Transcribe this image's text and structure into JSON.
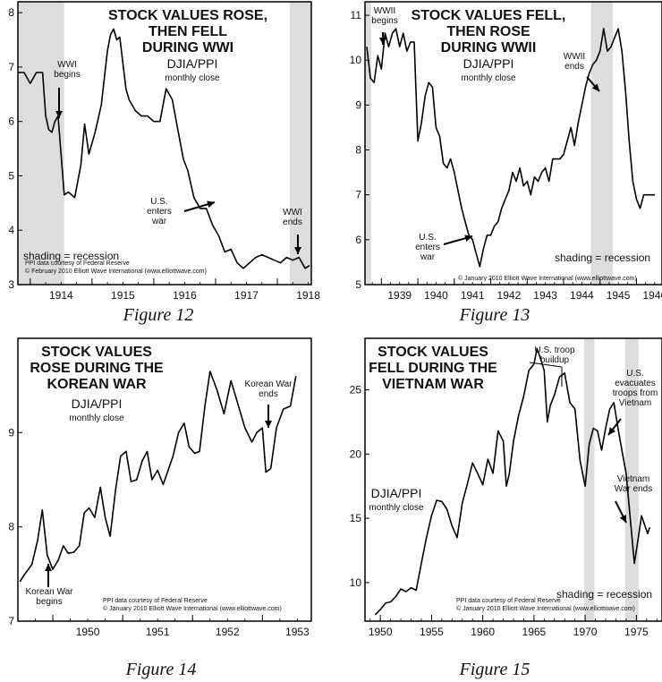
{
  "colors": {
    "shade": "#dddddd",
    "line": "#000000",
    "frame": "#000000"
  },
  "chart_data": [
    {
      "type": "line",
      "caption": "Figure 12",
      "title": [
        "STOCK VALUES ROSE,",
        "THEN FELL",
        "DURING WWI"
      ],
      "subtitle": "DJIA/PPI",
      "subtitle2": "monthly close",
      "shading_label": "shading = recession",
      "credits": [
        "PPI data courtesy of Federal Reserve",
        "© February 2010 Elliott Wave International (www.elliottwave.com)"
      ],
      "xlim": [
        1913.8,
        1918.55
      ],
      "ylim": [
        3,
        8.2
      ],
      "x_ticks": [
        1914,
        1915,
        1916,
        1917,
        1918
      ],
      "x_tick_labels": [
        "1914",
        "1915",
        "1916",
        "1917",
        "1918"
      ],
      "y_ticks": [
        3,
        4,
        5,
        6,
        7,
        8
      ],
      "y_tick_labels": [
        "3",
        "4",
        "5",
        "6",
        "7",
        "8"
      ],
      "recessions": [
        [
          1913.8,
          1914.55
        ],
        [
          1918.2,
          1918.55
        ]
      ],
      "series": [
        {
          "x": [
            1913.8,
            1913.9,
            1914.0,
            1914.1,
            1914.2,
            1914.25,
            1914.3,
            1914.35,
            1914.4,
            1914.45,
            1914.55,
            1914.62,
            1914.72,
            1914.82,
            1914.88,
            1914.95,
            1915.05,
            1915.15,
            1915.25,
            1915.3,
            1915.35,
            1915.4,
            1915.45,
            1915.55,
            1915.6,
            1915.7,
            1915.8,
            1915.9,
            1916.0,
            1916.1,
            1916.2,
            1916.3,
            1916.38,
            1916.48,
            1916.55,
            1916.65,
            1916.75,
            1916.85,
            1916.95,
            1917.05,
            1917.15,
            1917.25,
            1917.35,
            1917.45,
            1917.55,
            1917.65,
            1917.75,
            1917.85,
            1917.95,
            1918.05,
            1918.15,
            1918.25,
            1918.35,
            1918.45,
            1918.52
          ],
          "y": [
            6.9,
            6.9,
            6.7,
            6.9,
            6.9,
            6.1,
            5.85,
            5.8,
            6.0,
            6.1,
            4.65,
            4.7,
            4.6,
            5.2,
            5.95,
            5.4,
            5.8,
            6.3,
            7.3,
            7.6,
            7.7,
            7.5,
            7.55,
            6.6,
            6.4,
            6.2,
            6.1,
            6.1,
            6.0,
            6.0,
            6.6,
            6.4,
            5.9,
            5.3,
            5.1,
            4.6,
            4.4,
            4.4,
            4.1,
            3.9,
            3.6,
            3.65,
            3.4,
            3.3,
            3.4,
            3.5,
            3.55,
            3.5,
            3.45,
            3.4,
            3.5,
            3.45,
            3.5,
            3.3,
            3.35
          ]
        }
      ],
      "annotations": [
        {
          "lines": [
            "WWI",
            "begins"
          ],
          "x": 1914.35,
          "y": 5.85
        },
        {
          "lines": [
            "U.S.",
            "enters",
            "war"
          ],
          "x": 1916.85,
          "y": 4.4
        },
        {
          "lines": [
            "WWI",
            "ends"
          ],
          "x": 1918.45,
          "y": 3.55
        }
      ]
    },
    {
      "type": "line",
      "caption": "Figure 13",
      "title": [
        "STOCK VALUES FELL,",
        "THEN ROSE",
        "DURING WWII"
      ],
      "subtitle": "DJIA/PPI",
      "subtitle2": "monthly close",
      "shading_label": "shading = recession",
      "credits": [
        "© January 2010 Elliott Wave International (www.elliottwave.com)"
      ],
      "xlim": [
        1938.55,
        1946.7
      ],
      "ylim": [
        5,
        11.3
      ],
      "x_ticks": [
        1939,
        1940,
        1941,
        1942,
        1943,
        1944,
        1945,
        1946
      ],
      "x_tick_labels": [
        "1939",
        "1940",
        "1941",
        "1942",
        "1943",
        "1944",
        "1945",
        "1946"
      ],
      "y_ticks": [
        5,
        6,
        7,
        8,
        9,
        10,
        11
      ],
      "y_tick_labels": [
        "5",
        "6",
        "7",
        "8",
        "9",
        "10",
        "11"
      ],
      "recessions": [
        [
          1938.55,
          1938.72
        ],
        [
          1944.75,
          1945.35
        ]
      ],
      "series": [
        {
          "x": [
            1938.6,
            1938.7,
            1938.8,
            1938.9,
            1939.0,
            1939.1,
            1939.2,
            1939.3,
            1939.4,
            1939.5,
            1939.6,
            1939.7,
            1939.8,
            1939.9,
            1940.0,
            1940.1,
            1940.2,
            1940.3,
            1940.4,
            1940.5,
            1940.6,
            1940.7,
            1940.8,
            1940.9,
            1941.0,
            1941.1,
            1941.2,
            1941.3,
            1941.4,
            1941.5,
            1941.6,
            1941.7,
            1941.8,
            1941.9,
            1942.0,
            1942.1,
            1942.2,
            1942.3,
            1942.4,
            1942.5,
            1942.6,
            1942.7,
            1942.8,
            1942.9,
            1943.0,
            1943.1,
            1943.2,
            1943.3,
            1943.4,
            1943.5,
            1943.6,
            1943.7,
            1943.8,
            1943.9,
            1944.0,
            1944.1,
            1944.2,
            1944.3,
            1944.4,
            1944.5,
            1944.6,
            1944.7,
            1944.8,
            1944.9,
            1945.0,
            1945.1,
            1945.2,
            1945.3,
            1945.4,
            1945.5,
            1945.6,
            1945.7,
            1945.8,
            1945.9,
            1946.0,
            1946.1,
            1946.2,
            1946.3,
            1946.4,
            1946.5
          ],
          "y": [
            10.3,
            9.6,
            9.5,
            10.1,
            9.8,
            10.6,
            10.3,
            10.6,
            10.7,
            10.3,
            10.6,
            10.2,
            10.4,
            10.4,
            8.2,
            8.6,
            9.2,
            9.5,
            9.4,
            8.5,
            8.3,
            7.7,
            7.6,
            7.8,
            7.5,
            7.1,
            6.7,
            6.4,
            6.1,
            6.0,
            5.7,
            5.4,
            5.8,
            6.1,
            6.1,
            6.3,
            6.4,
            6.7,
            6.9,
            7.1,
            7.5,
            7.3,
            7.6,
            7.2,
            7.3,
            7.0,
            7.4,
            7.3,
            7.5,
            7.6,
            7.3,
            7.8,
            7.8,
            7.8,
            7.9,
            8.2,
            8.5,
            8.1,
            8.6,
            9.0,
            9.4,
            9.7,
            9.9,
            10.0,
            10.2,
            10.7,
            10.2,
            10.3,
            10.5,
            10.7,
            10.2,
            9.3,
            8.2,
            7.3,
            6.9,
            6.7,
            7.0,
            7.0,
            7.0,
            7.0
          ]
        }
      ],
      "annotations": [
        {
          "lines": [
            "WWII",
            "begins"
          ],
          "x": 1939.3,
          "y": 10.6
        },
        {
          "lines": [
            "WWII",
            "ends"
          ],
          "x": 1945.35,
          "y": 10.2
        },
        {
          "lines": [
            "U.S.",
            "enters",
            "war"
          ],
          "x": 1941.75,
          "y": 5.6
        }
      ]
    },
    {
      "type": "line",
      "caption": "Figure 14",
      "title": [
        "STOCK VALUES",
        "ROSE DURING THE",
        "KOREAN WAR"
      ],
      "subtitle": "DJIA/PPI",
      "subtitle2": "monthly close",
      "shading_label": "",
      "credits": [
        "PPI data courtesy of Federal Reserve",
        "© January 2010 Elliott Wave International (www.elliottwave.com)"
      ],
      "xlim": [
        1949.5,
        1953.7
      ],
      "ylim": [
        7,
        10
      ],
      "x_ticks": [
        1950,
        1951,
        1952,
        1953
      ],
      "x_tick_labels": [
        "1950",
        "1951",
        "1952",
        "1953"
      ],
      "y_ticks": [
        7,
        8,
        9
      ],
      "y_tick_labels": [
        "7",
        "8",
        "9"
      ],
      "recessions": [],
      "series": [
        {
          "x": [
            1949.53,
            1949.6,
            1949.7,
            1949.78,
            1949.85,
            1949.92,
            1950.0,
            1950.08,
            1950.15,
            1950.22,
            1950.3,
            1950.38,
            1950.45,
            1950.52,
            1950.6,
            1950.68,
            1950.75,
            1950.82,
            1950.9,
            1950.97,
            1951.05,
            1951.12,
            1951.2,
            1951.28,
            1951.35,
            1951.42,
            1951.5,
            1951.58,
            1951.65,
            1951.72,
            1951.8,
            1951.88,
            1951.95,
            1952.03,
            1952.1,
            1952.18,
            1952.25,
            1952.35,
            1952.45,
            1952.55,
            1952.65,
            1952.75,
            1952.85,
            1952.92,
            1953.0,
            1953.05,
            1953.12,
            1953.2,
            1953.3,
            1953.4,
            1953.48
          ],
          "y": [
            7.42,
            7.5,
            7.6,
            7.85,
            8.18,
            7.7,
            7.55,
            7.65,
            7.8,
            7.72,
            7.73,
            7.8,
            8.15,
            8.2,
            8.1,
            8.42,
            8.1,
            7.9,
            8.4,
            8.75,
            8.8,
            8.48,
            8.5,
            8.7,
            8.8,
            8.5,
            8.6,
            8.45,
            8.6,
            8.75,
            9.0,
            9.1,
            8.85,
            8.78,
            8.8,
            9.3,
            9.65,
            9.45,
            9.2,
            9.55,
            9.3,
            9.05,
            8.9,
            9.0,
            9.05,
            8.58,
            8.62,
            9.05,
            9.25,
            9.28,
            9.6
          ]
        }
      ],
      "annotations": [
        {
          "lines": [
            "Korean War",
            "begins"
          ],
          "x": 1950.45,
          "y": 7.65
        },
        {
          "lines": [
            "Korean War",
            "ends"
          ],
          "x": 1953.05,
          "y": 9.08
        }
      ]
    },
    {
      "type": "line",
      "caption": "Figure 15",
      "title": [
        "STOCK VALUES",
        "FELL DURING THE",
        "VIETNAM WAR"
      ],
      "subtitle": "DJIA/PPI",
      "subtitle2": "monthly close",
      "shading_label": "shading = recession",
      "credits": [
        "PPI data courtesy of Federal Reserve",
        "© January 2010 Elliott Wave International (www.elliottwave.com)"
      ],
      "xlim": [
        1948.5,
        1977.5
      ],
      "ylim": [
        7,
        29
      ],
      "x_ticks": [
        1950,
        1955,
        1960,
        1965,
        1970,
        1975
      ],
      "x_tick_labels": [
        "1950",
        "1955",
        "1960",
        "1965",
        "1970",
        "1975"
      ],
      "y_ticks": [
        10,
        15,
        20,
        25
      ],
      "y_tick_labels": [
        "10",
        "15",
        "20",
        "25"
      ],
      "recessions": [
        [
          1969.9,
          1970.9
        ],
        [
          1973.9,
          1975.2
        ]
      ],
      "series": [
        {
          "x": [
            1949.5,
            1950.0,
            1950.5,
            1951.0,
            1951.5,
            1952.0,
            1952.5,
            1953.0,
            1953.5,
            1954.0,
            1954.5,
            1955.0,
            1955.5,
            1956.0,
            1956.5,
            1957.0,
            1957.5,
            1958.0,
            1958.5,
            1959.0,
            1959.5,
            1960.0,
            1960.5,
            1961.0,
            1961.5,
            1962.0,
            1962.3,
            1962.6,
            1963.0,
            1963.5,
            1964.0,
            1964.5,
            1965.0,
            1965.3,
            1965.6,
            1966.0,
            1966.3,
            1966.6,
            1967.0,
            1967.5,
            1968.0,
            1968.5,
            1969.0,
            1969.5,
            1970.0,
            1970.4,
            1970.8,
            1971.2,
            1971.6,
            1972.0,
            1972.4,
            1972.8,
            1973.2,
            1973.6,
            1974.0,
            1974.4,
            1974.8,
            1975.1,
            1975.5,
            1975.8,
            1976.1,
            1976.3
          ],
          "y": [
            7.5,
            7.9,
            8.4,
            8.5,
            8.9,
            9.5,
            9.3,
            9.6,
            9.4,
            11.5,
            13.5,
            15.2,
            16.4,
            16.3,
            15.7,
            14.4,
            13.5,
            16.2,
            17.7,
            19.3,
            18.5,
            17.6,
            19.6,
            18.5,
            21.8,
            21.0,
            17.5,
            18.5,
            21.0,
            23.0,
            24.5,
            26.5,
            27.0,
            28.2,
            27.5,
            26.5,
            22.5,
            23.8,
            24.6,
            26.0,
            26.3,
            24.0,
            23.5,
            19.5,
            17.5,
            20.8,
            22.0,
            21.8,
            20.3,
            22.0,
            23.5,
            24.0,
            22.0,
            20.2,
            18.5,
            15.0,
            11.5,
            13.0,
            15.2,
            14.5,
            13.8,
            14.3
          ]
        }
      ],
      "annotations": [
        {
          "lines": [
            "U.S. troop",
            "buildup"
          ],
          "x": 1965.4,
          "y": 27.0
        },
        {
          "lines": [
            "U.S.",
            "evacuates",
            "troops from",
            "Vietnam"
          ],
          "x": 1972.7,
          "y": 23.0
        },
        {
          "lines": [
            "Vietnam",
            "War ends"
          ],
          "x": 1975.1,
          "y": 14.7
        }
      ]
    }
  ]
}
